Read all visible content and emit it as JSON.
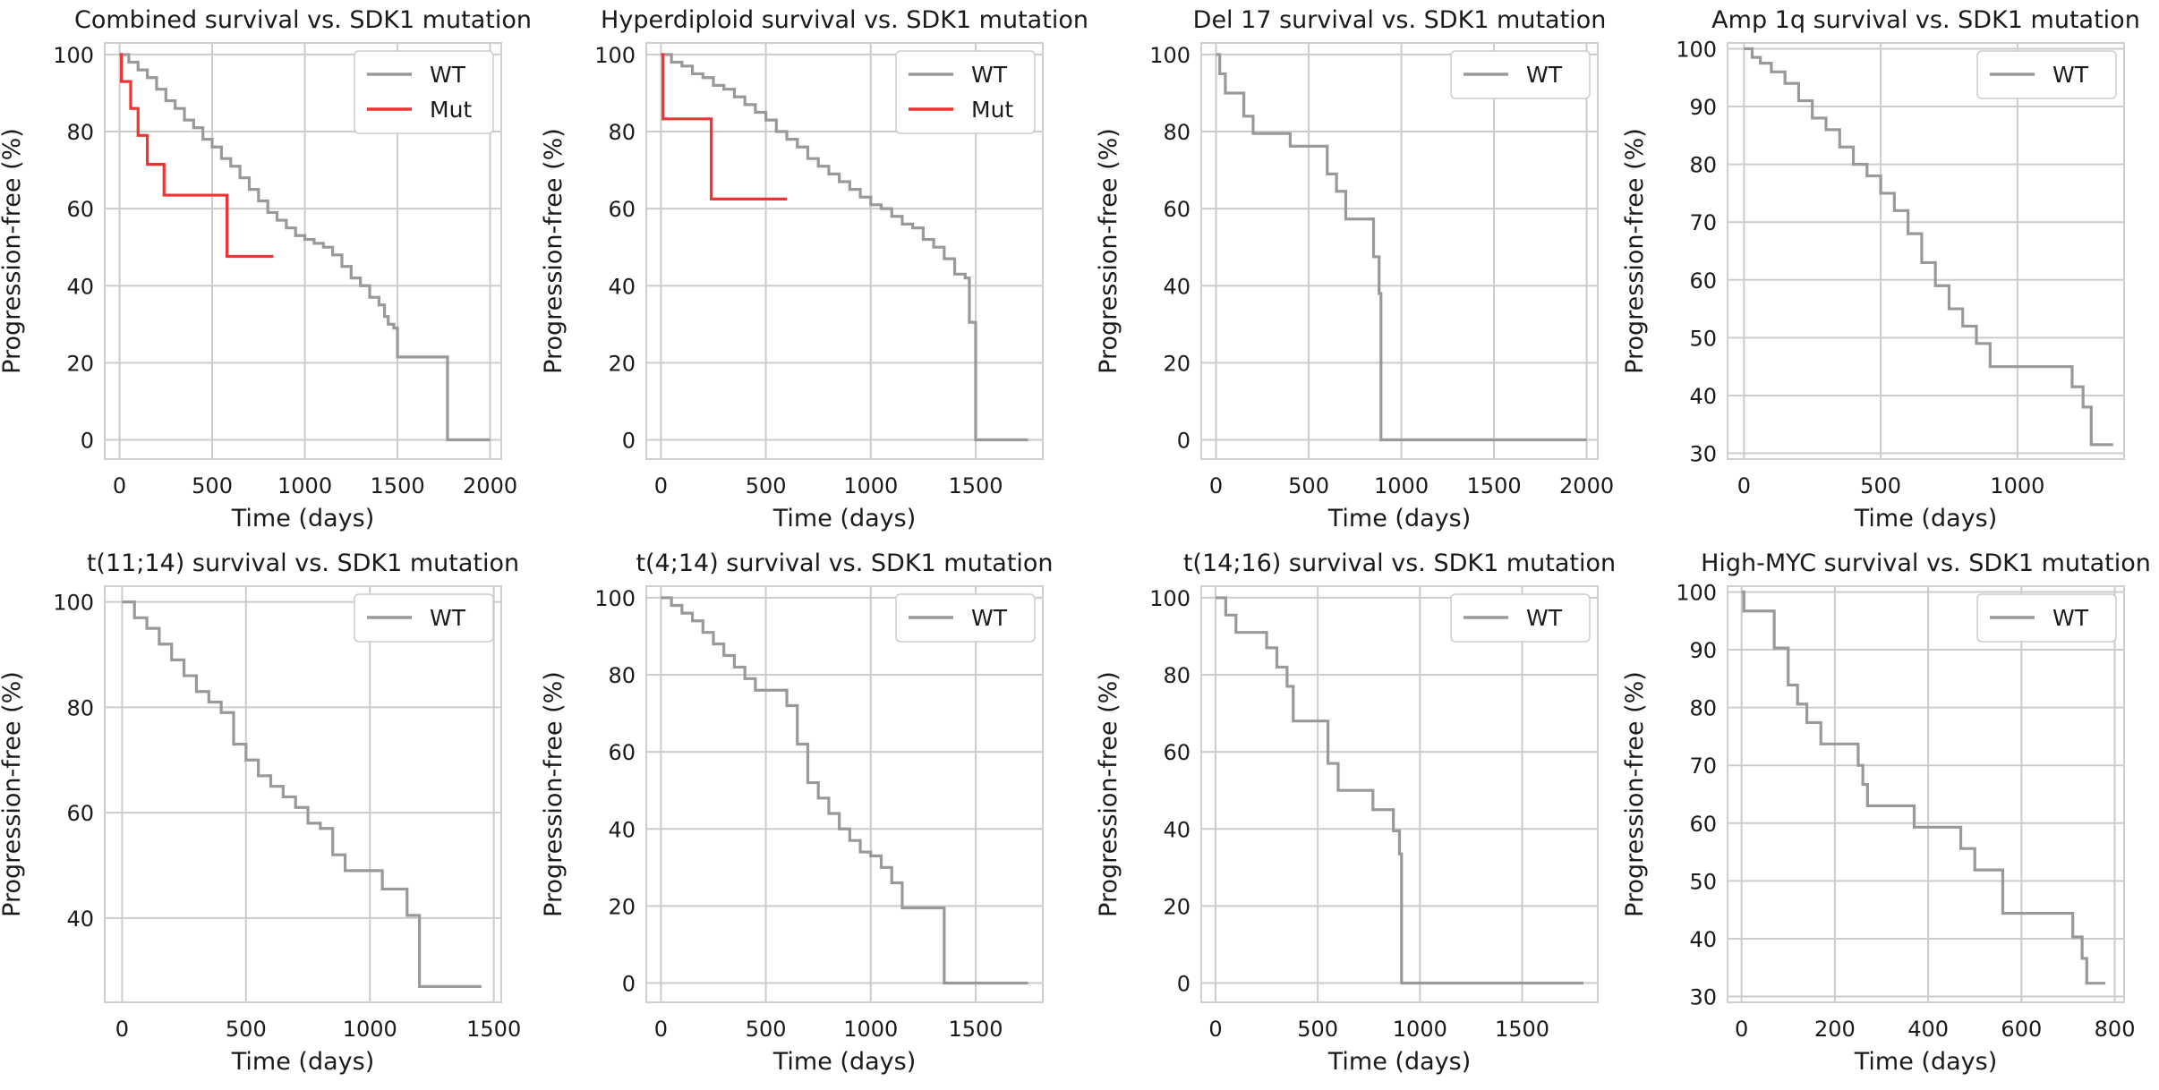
{
  "chart_data": [
    {
      "type": "line",
      "step": true,
      "title": "Combined survival vs. SDK1 mutation",
      "xlabel": "Time (days)",
      "ylabel": "Progression-free (%)",
      "xlim": [
        -80,
        2060
      ],
      "ylim": [
        -5,
        103
      ],
      "xticks": [
        0,
        500,
        1000,
        1500,
        2000
      ],
      "yticks": [
        0,
        20,
        40,
        60,
        80,
        100
      ],
      "legend_position": "top-right",
      "series": [
        {
          "name": "WT",
          "color": "#999999",
          "x": [
            0,
            50,
            100,
            150,
            200,
            250,
            300,
            350,
            400,
            450,
            500,
            550,
            600,
            650,
            700,
            750,
            800,
            850,
            900,
            950,
            1000,
            1050,
            1100,
            1150,
            1200,
            1250,
            1300,
            1350,
            1400,
            1430,
            1450,
            1480,
            1500,
            1760,
            1770,
            2000
          ],
          "y": [
            100,
            98,
            96,
            94,
            91,
            88,
            86,
            83,
            81,
            78,
            76,
            73,
            71,
            68,
            65,
            62,
            59,
            57,
            55,
            53,
            52,
            51,
            50,
            48,
            45,
            42,
            40,
            37,
            35,
            32,
            30,
            29,
            21.5,
            21.5,
            0,
            0
          ]
        },
        {
          "name": "Mut",
          "color": "#ee3333",
          "x": [
            0,
            10,
            60,
            100,
            150,
            240,
            300,
            580,
            600,
            830
          ],
          "y": [
            100,
            93,
            86,
            79,
            71.5,
            63.5,
            63.5,
            47.6,
            47.6,
            47.6
          ]
        }
      ]
    },
    {
      "type": "line",
      "step": true,
      "title": "Hyperdiploid survival vs. SDK1 mutation",
      "xlabel": "Time (days)",
      "ylabel": "Progression-free (%)",
      "xlim": [
        -70,
        1820
      ],
      "ylim": [
        -5,
        103
      ],
      "xticks": [
        0,
        500,
        1000,
        1500
      ],
      "yticks": [
        0,
        20,
        40,
        60,
        80,
        100
      ],
      "legend_position": "top-right",
      "series": [
        {
          "name": "WT",
          "color": "#999999",
          "x": [
            0,
            50,
            100,
            150,
            200,
            250,
            300,
            350,
            400,
            450,
            500,
            550,
            600,
            650,
            700,
            750,
            800,
            850,
            900,
            950,
            1000,
            1050,
            1100,
            1150,
            1200,
            1250,
            1300,
            1350,
            1400,
            1450,
            1470,
            1500,
            1750
          ],
          "y": [
            100,
            98,
            97,
            95,
            94,
            92,
            91,
            89,
            87,
            85,
            83,
            80,
            78,
            76,
            73,
            71,
            69,
            67,
            65,
            63,
            61,
            60,
            58,
            56,
            55,
            52,
            50,
            47,
            43,
            42,
            30.5,
            0,
            0
          ]
        },
        {
          "name": "Mut",
          "color": "#ee3333",
          "x": [
            0,
            10,
            240,
            250,
            600
          ],
          "y": [
            100,
            83.3,
            62.5,
            62.5,
            62.5
          ]
        }
      ]
    },
    {
      "type": "line",
      "step": true,
      "title": "Del 17 survival vs. SDK1 mutation",
      "xlabel": "Time (days)",
      "ylabel": "Progression-free (%)",
      "xlim": [
        -80,
        2060
      ],
      "ylim": [
        -5,
        103
      ],
      "xticks": [
        0,
        500,
        1000,
        1500,
        2000
      ],
      "yticks": [
        0,
        20,
        40,
        60,
        80,
        100
      ],
      "legend_position": "top-right",
      "series": [
        {
          "name": "WT",
          "color": "#999999",
          "x": [
            0,
            20,
            50,
            150,
            200,
            370,
            400,
            600,
            650,
            700,
            850,
            880,
            890,
            900,
            1000,
            2000
          ],
          "y": [
            100,
            95,
            90,
            84,
            79.5,
            79.5,
            76.2,
            69,
            64.5,
            57.3,
            47.5,
            38,
            0,
            0,
            0,
            0
          ]
        }
      ]
    },
    {
      "type": "line",
      "step": true,
      "title": "Amp 1q survival vs. SDK1 mutation",
      "xlabel": "Time (days)",
      "ylabel": "Progression-free (%)",
      "xlim": [
        -60,
        1390
      ],
      "ylim": [
        29,
        101
      ],
      "xticks": [
        0,
        500,
        1000
      ],
      "yticks": [
        30,
        40,
        50,
        60,
        70,
        80,
        90,
        100
      ],
      "legend_position": "top-right",
      "series": [
        {
          "name": "WT",
          "color": "#999999",
          "x": [
            0,
            30,
            60,
            100,
            150,
            200,
            250,
            300,
            350,
            400,
            450,
            500,
            550,
            600,
            650,
            700,
            750,
            800,
            850,
            900,
            1000,
            1100,
            1200,
            1240,
            1270,
            1350
          ],
          "y": [
            100,
            98.5,
            97.5,
            96,
            94,
            91,
            88,
            86,
            83,
            80,
            78,
            75,
            72,
            68,
            63,
            59,
            55,
            52,
            49,
            45,
            45,
            45,
            41.5,
            38,
            31.5,
            31.5
          ]
        }
      ]
    },
    {
      "type": "line",
      "step": true,
      "title": "t(11;14) survival vs. SDK1 mutation",
      "xlabel": "Time (days)",
      "ylabel": "Progression-free (%)",
      "xlim": [
        -70,
        1530
      ],
      "ylim": [
        24,
        103
      ],
      "xticks": [
        0,
        500,
        1000,
        1500
      ],
      "yticks": [
        40,
        60,
        80,
        100
      ],
      "legend_position": "top-right",
      "series": [
        {
          "name": "WT",
          "color": "#999999",
          "x": [
            0,
            50,
            100,
            150,
            200,
            250,
            300,
            350,
            400,
            450,
            500,
            550,
            600,
            650,
            700,
            750,
            800,
            850,
            900,
            1000,
            1050,
            1150,
            1200,
            1450
          ],
          "y": [
            100,
            97,
            95,
            92,
            89,
            86,
            83,
            81,
            79,
            73,
            70,
            67,
            65,
            63,
            61,
            58,
            57,
            52,
            49,
            49,
            45.5,
            40.5,
            27,
            27
          ]
        }
      ]
    },
    {
      "type": "line",
      "step": true,
      "title": "t(4;14) survival vs. SDK1 mutation",
      "xlabel": "Time (days)",
      "ylabel": "Progression-free (%)",
      "xlim": [
        -70,
        1820
      ],
      "ylim": [
        -5,
        103
      ],
      "xticks": [
        0,
        500,
        1000,
        1500
      ],
      "yticks": [
        0,
        20,
        40,
        60,
        80,
        100
      ],
      "legend_position": "top-right",
      "series": [
        {
          "name": "WT",
          "color": "#999999",
          "x": [
            0,
            50,
            100,
            150,
            200,
            250,
            300,
            350,
            400,
            450,
            500,
            550,
            600,
            650,
            700,
            750,
            800,
            850,
            900,
            950,
            1000,
            1050,
            1100,
            1150,
            1350,
            1750
          ],
          "y": [
            100,
            98,
            96,
            94,
            91,
            88,
            85,
            82,
            79,
            76,
            76,
            76,
            72,
            62,
            52,
            48,
            44,
            40,
            37,
            34,
            33,
            30,
            26,
            19.5,
            0,
            0
          ]
        }
      ]
    },
    {
      "type": "line",
      "step": true,
      "title": "t(14;16) survival vs. SDK1 mutation",
      "xlabel": "Time (days)",
      "ylabel": "Progression-free (%)",
      "xlim": [
        -70,
        1870
      ],
      "ylim": [
        -5,
        103
      ],
      "xticks": [
        0,
        500,
        1000,
        1500
      ],
      "yticks": [
        0,
        20,
        40,
        60,
        80,
        100
      ],
      "legend_position": "top-right",
      "series": [
        {
          "name": "WT",
          "color": "#999999",
          "x": [
            0,
            50,
            100,
            250,
            300,
            350,
            380,
            550,
            600,
            650,
            770,
            870,
            900,
            910,
            1000,
            1800
          ],
          "y": [
            100,
            95.5,
            91,
            87,
            82,
            77,
            68,
            57,
            50,
            50,
            45,
            39.5,
            33.5,
            0,
            0,
            0
          ]
        }
      ]
    },
    {
      "type": "line",
      "step": true,
      "title": "High-MYC survival vs. SDK1 mutation",
      "xlabel": "Time (days)",
      "ylabel": "Progression-free (%)",
      "xlim": [
        -30,
        820
      ],
      "ylim": [
        29,
        101
      ],
      "xticks": [
        0,
        200,
        400,
        600,
        800
      ],
      "yticks": [
        30,
        40,
        50,
        60,
        70,
        80,
        90,
        100
      ],
      "legend_position": "top-right",
      "series": [
        {
          "name": "WT",
          "color": "#999999",
          "x": [
            0,
            5,
            70,
            100,
            120,
            140,
            170,
            250,
            260,
            270,
            370,
            470,
            500,
            560,
            710,
            730,
            740,
            780
          ],
          "y": [
            100,
            96.7,
            90.3,
            83.9,
            80.6,
            77.4,
            73.7,
            70,
            66.7,
            63,
            59.3,
            55.6,
            51.9,
            44.4,
            40.3,
            36.6,
            32.3,
            32.3
          ]
        }
      ]
    }
  ]
}
